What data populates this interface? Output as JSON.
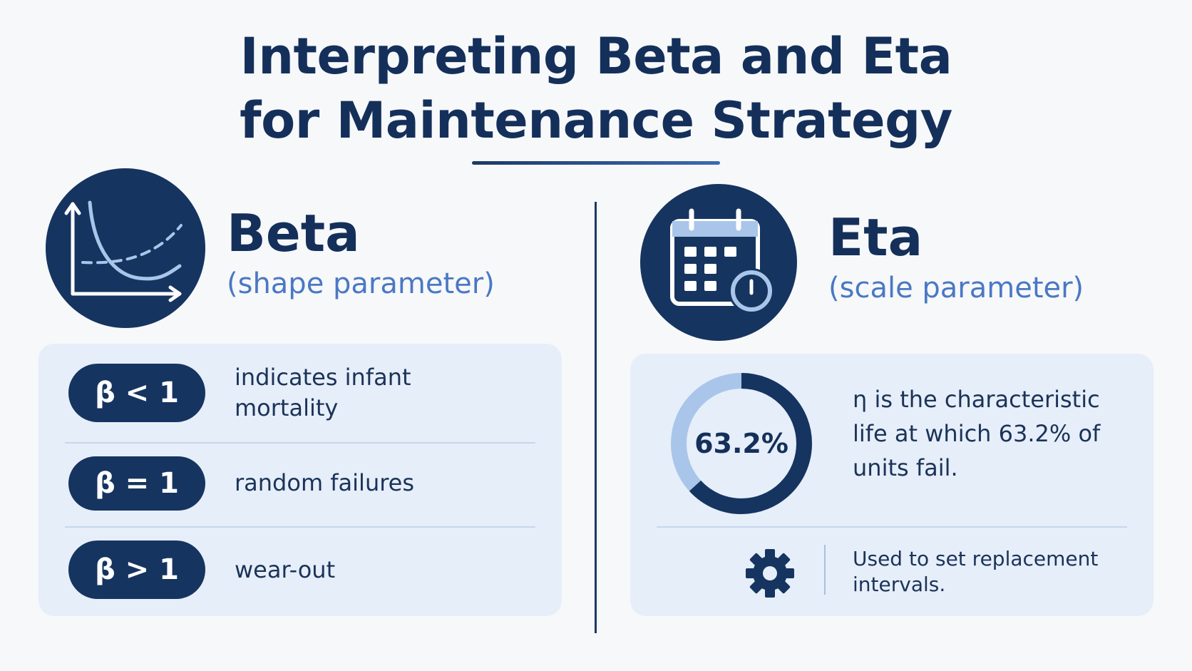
{
  "title": {
    "line1": "Interpreting Beta and Eta",
    "line2": "for Maintenance Strategy"
  },
  "beta": {
    "name": "Beta",
    "subtitle": "(shape parameter)",
    "icon": "curve-chart-icon",
    "rows": [
      {
        "badge": "β < 1",
        "text": "indicates infant mortality"
      },
      {
        "badge": "β = 1",
        "text": "random failures"
      },
      {
        "badge": "β > 1",
        "text": "wear-out"
      }
    ]
  },
  "eta": {
    "name": "Eta",
    "subtitle": "(scale parameter)",
    "icon": "calendar-clock-icon",
    "percent_label": "63.2%",
    "percent_value": 63.2,
    "description": "η is the characteristic life at which 63.2% of units fail.",
    "note_icon": "gear-icon",
    "note": "Used to set replacement intervals."
  },
  "colors": {
    "navy": "#163460",
    "accent_blue": "#4a78c4",
    "light_blue": "#a9c6ea",
    "card_bg": "#e6eef9"
  }
}
